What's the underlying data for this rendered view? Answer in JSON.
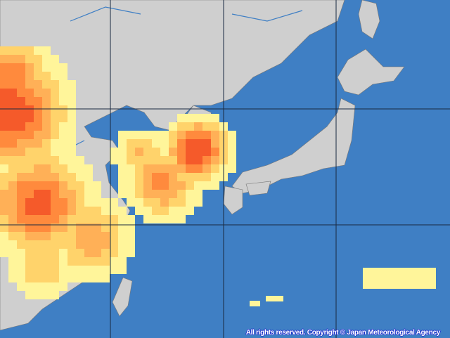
{
  "map": {
    "ocean_color": "#3f7fc4",
    "land_color": "#cfcfcf",
    "grid_color": "#1a2a40",
    "heat_colors": [
      "#fff59a",
      "#ffd36b",
      "#ffb057",
      "#ff8a3d",
      "#f55a2a"
    ],
    "copyright": "All rights reserved. Copyright © Japan Meteorological Agency"
  }
}
